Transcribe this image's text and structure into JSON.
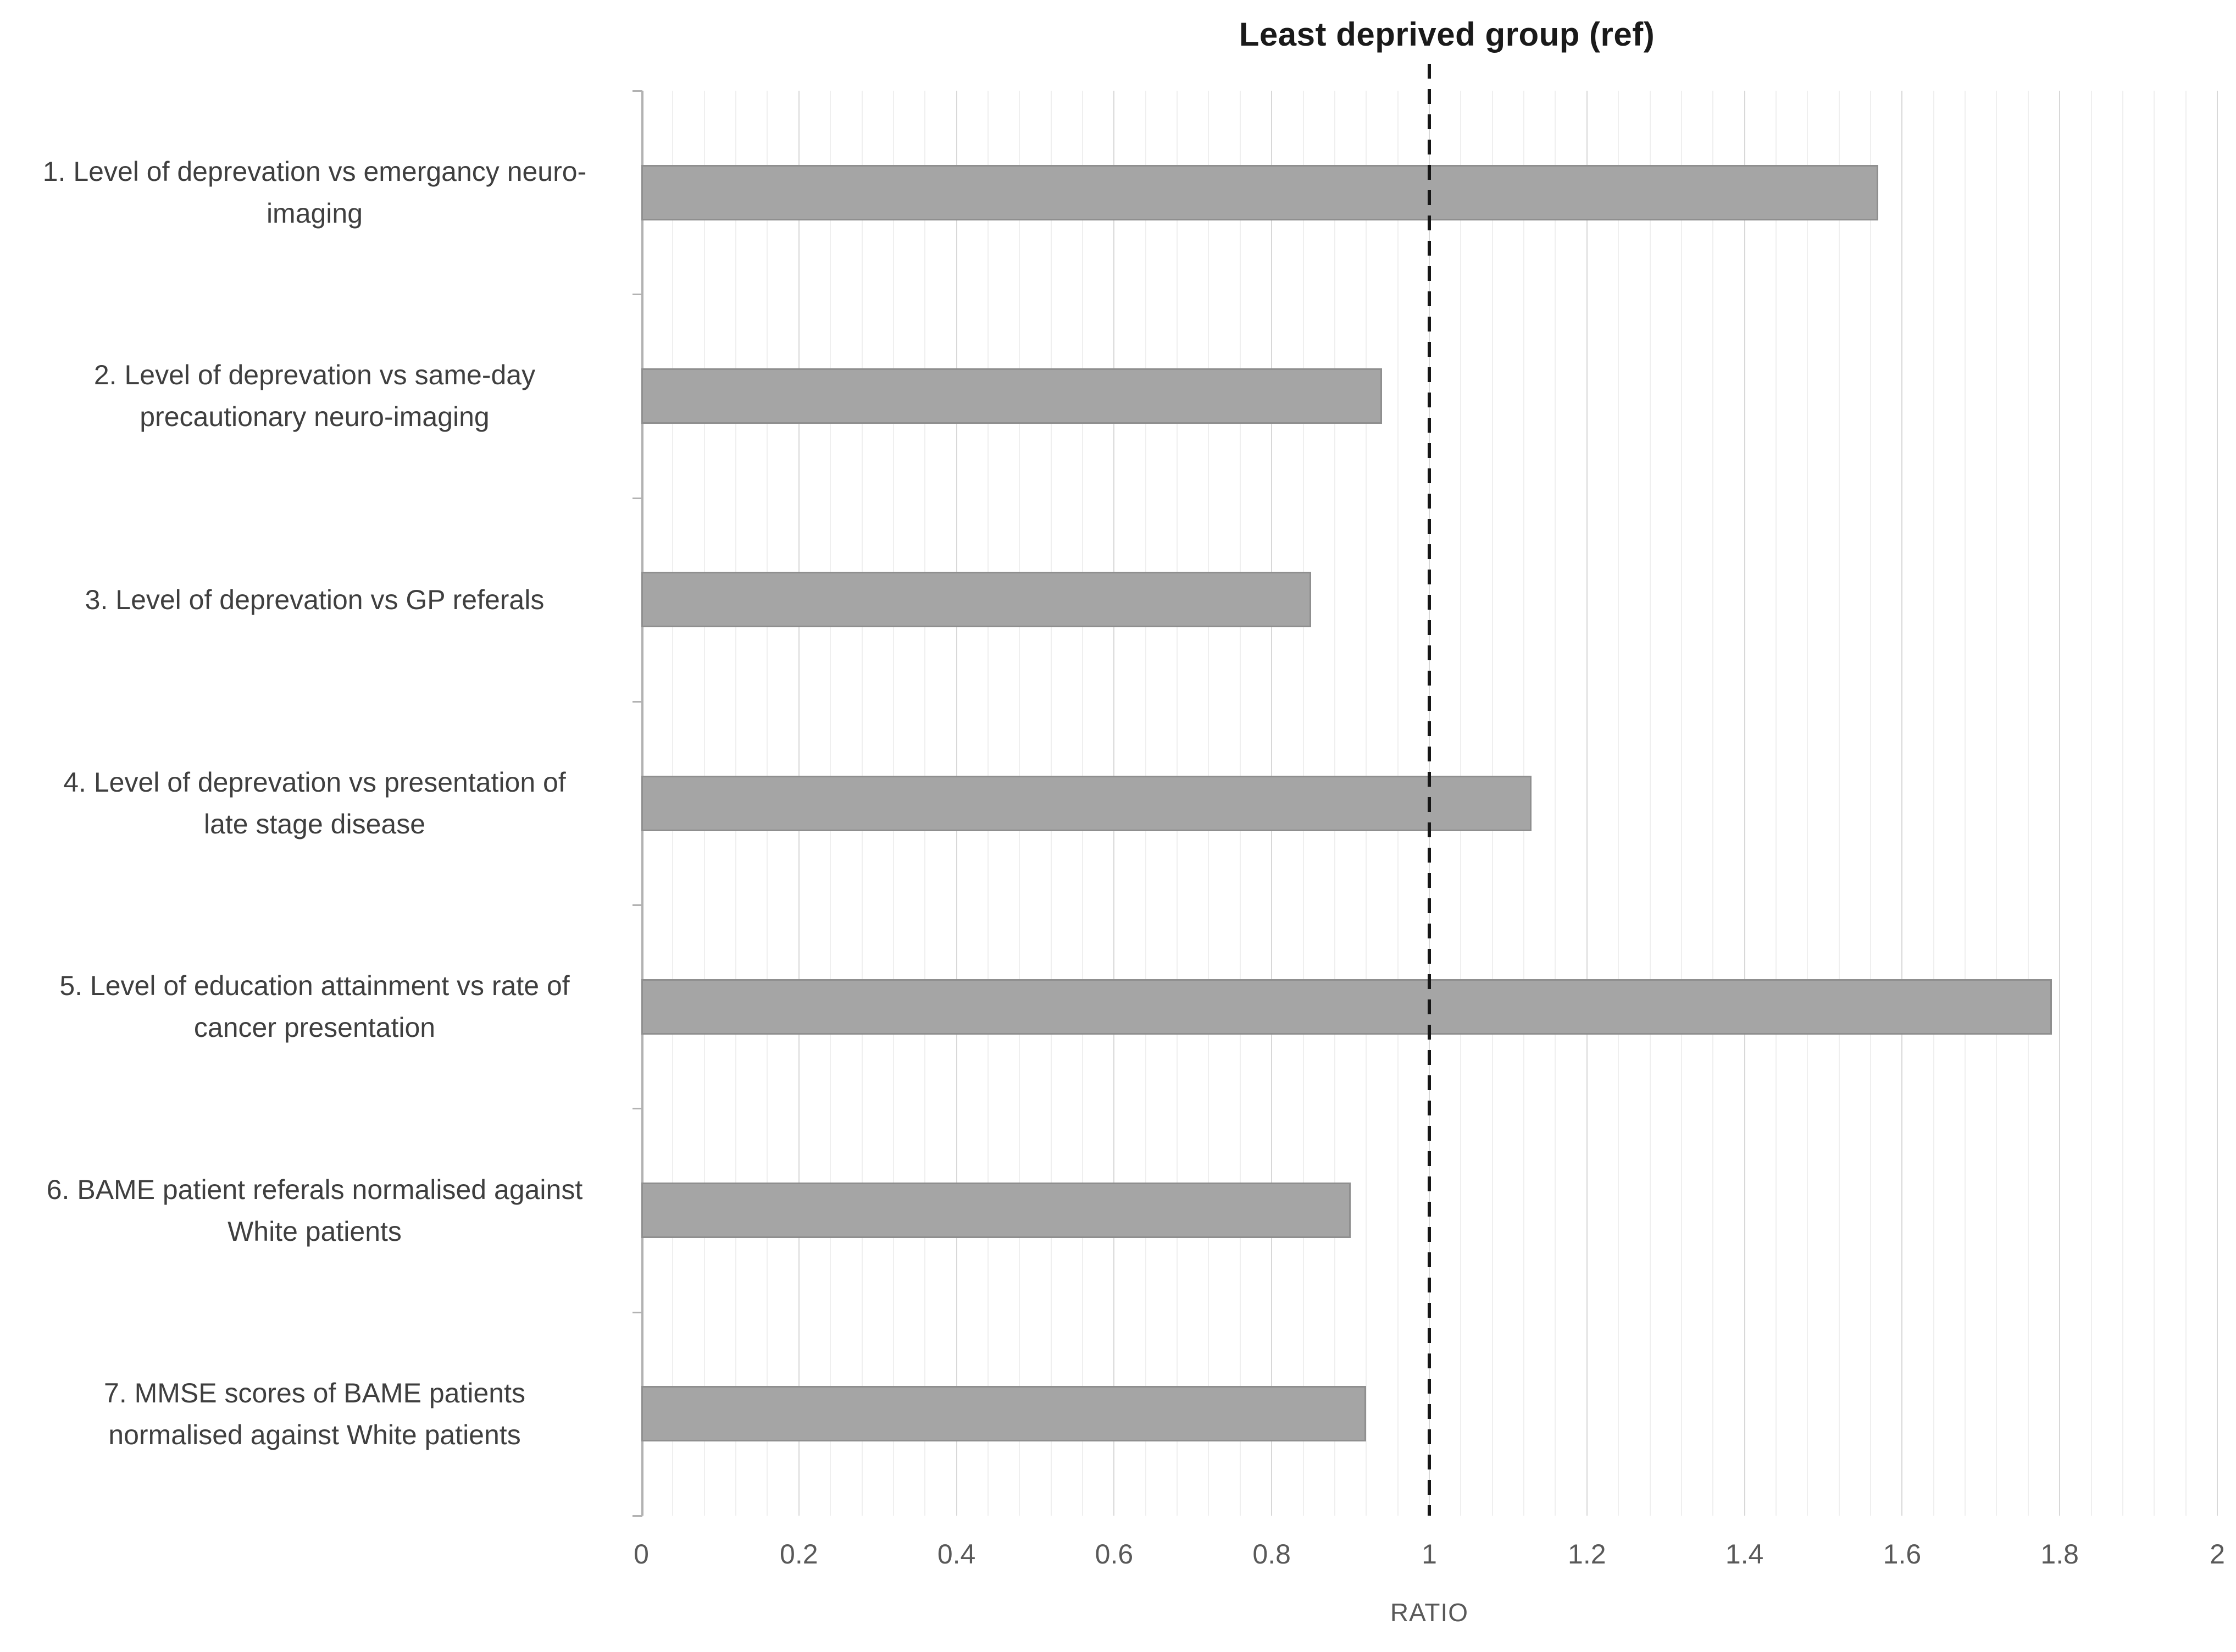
{
  "chart_data": {
    "type": "bar",
    "orientation": "horizontal",
    "title": "Least deprived group (ref)",
    "xlabel": "RATIO",
    "categories": [
      "1. Level of deprevation vs emergancy neuro-\nimaging",
      "2. Level of deprevation vs same-day\nprecautionary neuro-imaging",
      "3. Level of deprevation vs GP referals",
      "4. Level of deprevation vs presentation of\nlate stage disease",
      "5. Level of education attainment vs rate of\ncancer presentation",
      "6. BAME patient referals normalised against\nWhite patients",
      "7. MMSE scores of BAME patients\nnormalised against White patients"
    ],
    "values": [
      1.57,
      0.94,
      0.85,
      1.13,
      1.79,
      0.9,
      0.92
    ],
    "xlim": [
      0,
      2
    ],
    "x_major_unit": 0.2,
    "x_minor_unit": 0.04,
    "x_tick_labels": [
      "0",
      "0.2",
      "0.4",
      "0.6",
      "0.8",
      "1",
      "1.2",
      "1.4",
      "1.6",
      "1.8",
      "2"
    ],
    "reference_line": {
      "value": 1,
      "style": "dashed",
      "color": "#161616"
    },
    "legend": "none",
    "grid": "vertical-major-and-minor",
    "bar_color": "#a5a5a5",
    "bar_border_color": "#8f8f8f",
    "major_grid_color": "#d8d8d8",
    "minor_grid_color": "#efefef",
    "axis_color": "#b2b2b2",
    "tick_label_color": "#595959",
    "category_label_color": "#3f3f3f",
    "title_color": "#1a1a1a"
  }
}
